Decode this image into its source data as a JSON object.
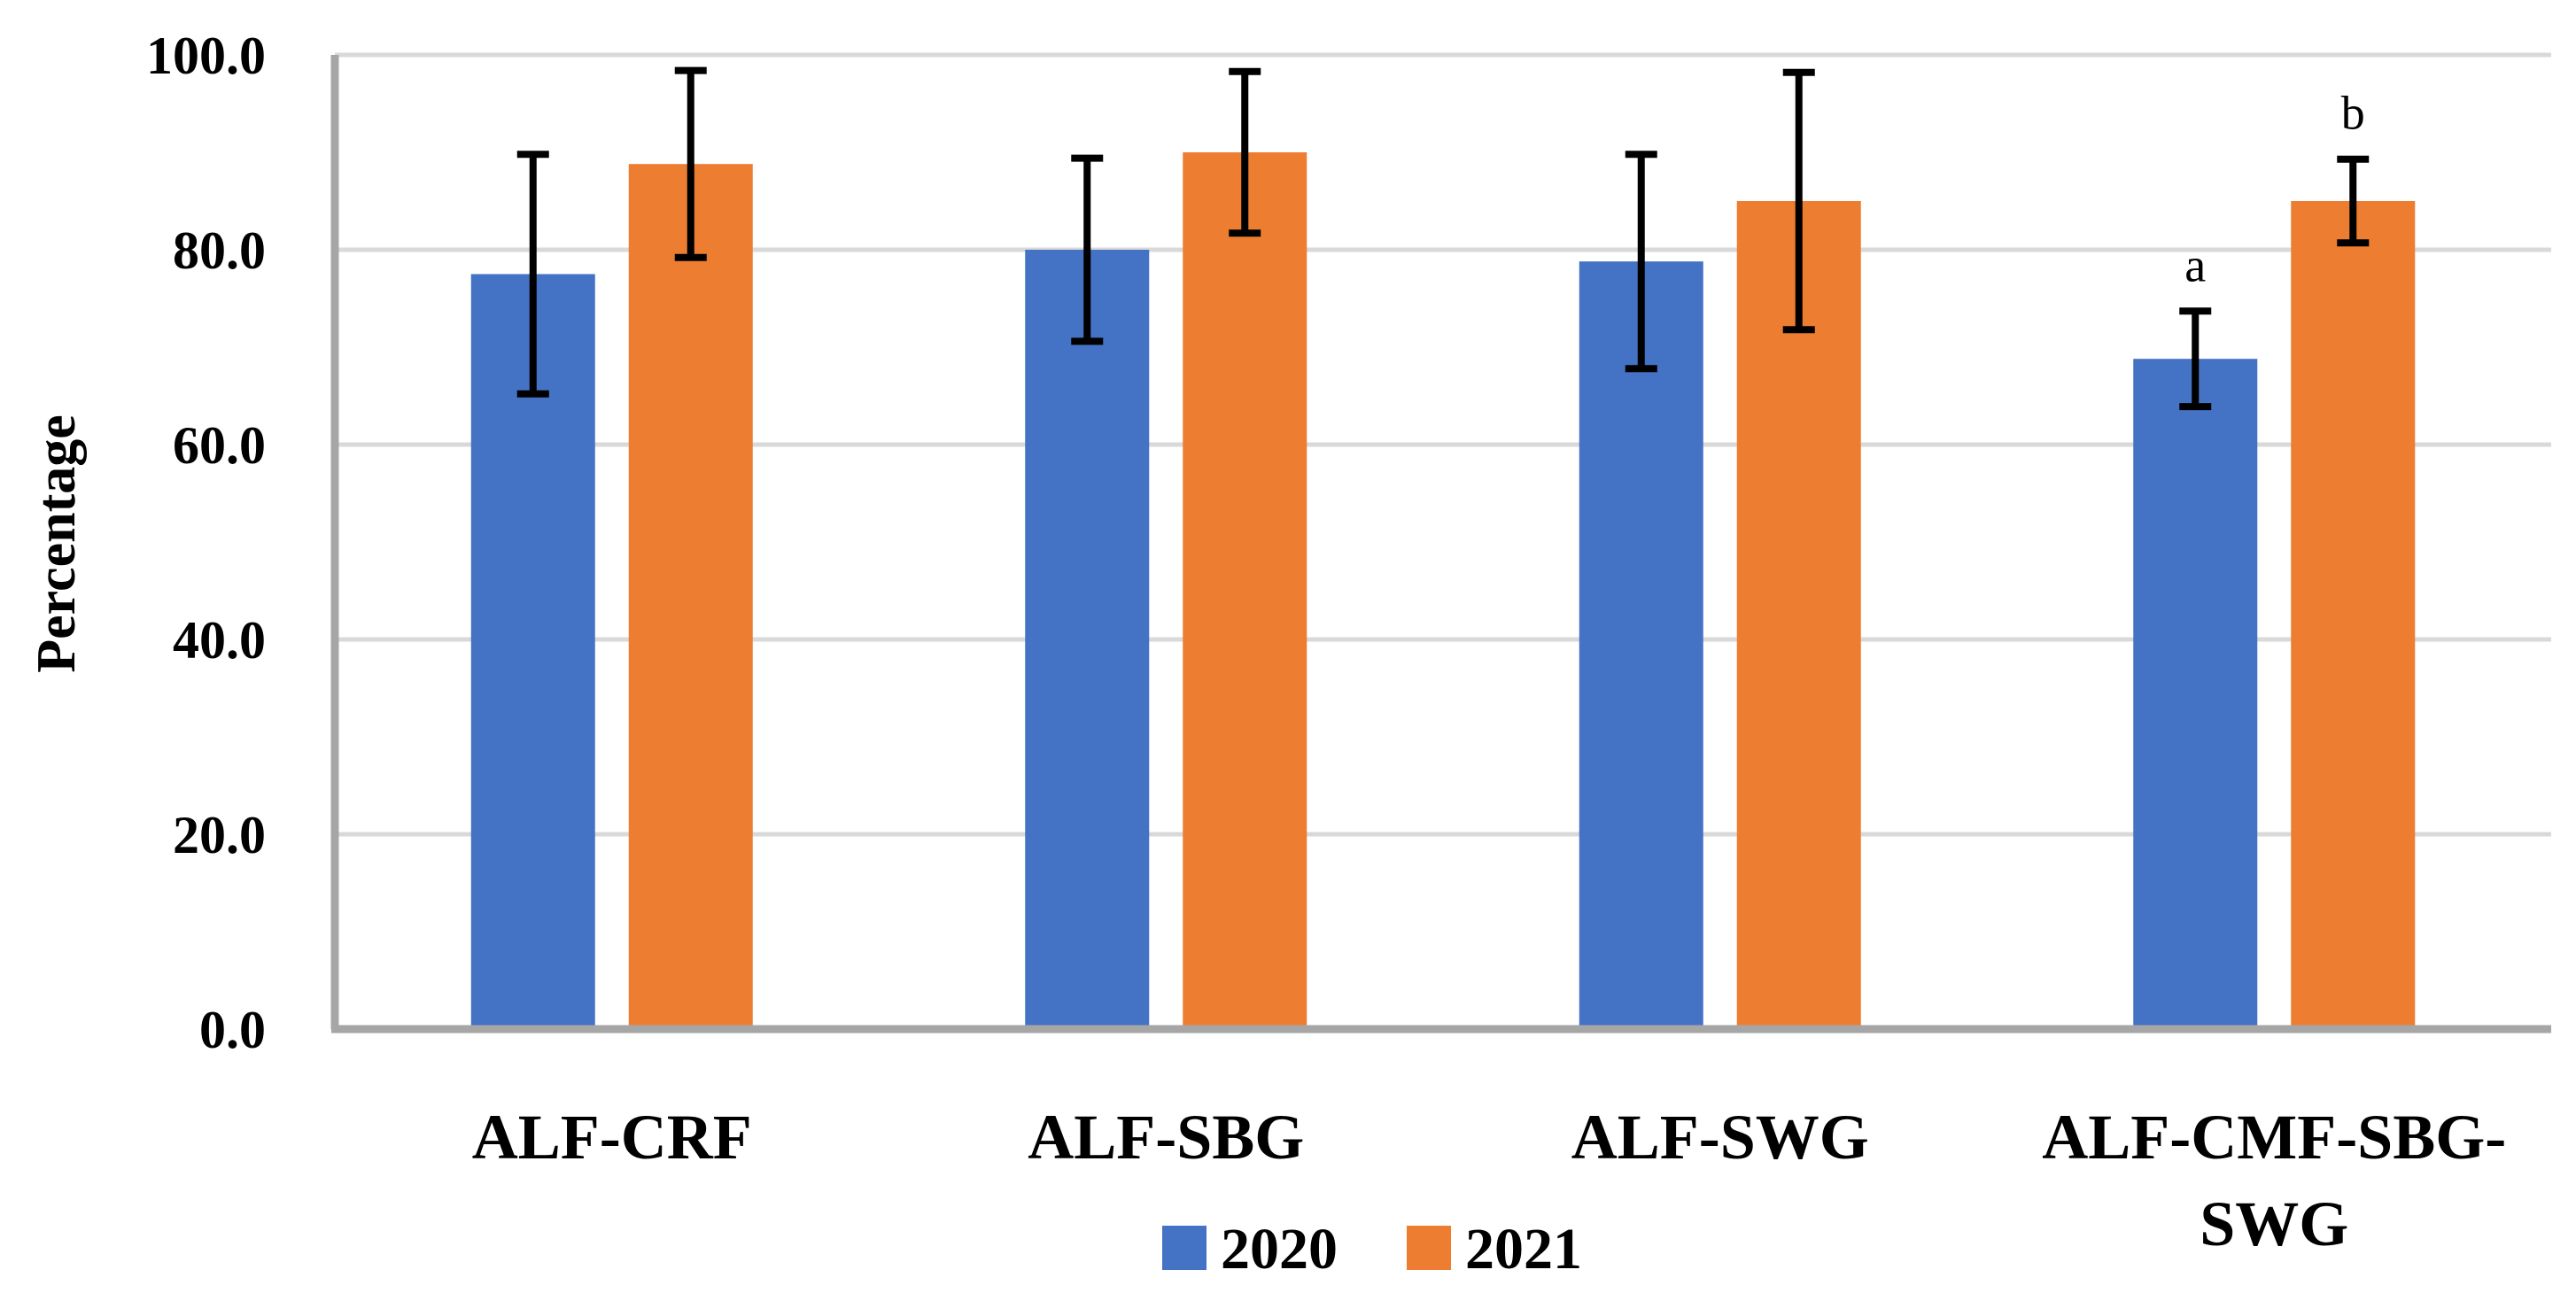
{
  "chart_data": {
    "type": "bar",
    "title": "",
    "xlabel": "",
    "ylabel": "Percentage",
    "ylim": [
      0,
      100
    ],
    "yticks": [
      "0.0",
      "20.0",
      "40.0",
      "60.0",
      "80.0",
      "100.0"
    ],
    "categories": [
      "ALF-CRF",
      "ALF-SBG",
      "ALF-SWG",
      "ALF-CMF-SBG-SWG"
    ],
    "category_lines": [
      [
        "ALF-CRF"
      ],
      [
        "ALF-SBG"
      ],
      [
        "ALF-SWG"
      ],
      [
        "ALF-CMF-SBG-",
        "SWG"
      ]
    ],
    "series": [
      {
        "name": "2020",
        "color": "#4472c4",
        "values": [
          77.5,
          80.0,
          78.8,
          68.8
        ],
        "error": [
          12.3,
          9.4,
          11.0,
          4.9
        ],
        "annotations": [
          "",
          "",
          "",
          "a"
        ]
      },
      {
        "name": "2021",
        "color": "#ed7d31",
        "values": [
          88.8,
          90.0,
          85.0,
          85.0
        ],
        "error": [
          9.6,
          8.3,
          13.2,
          4.3
        ],
        "annotations": [
          "",
          "",
          "",
          "b"
        ]
      }
    ],
    "legend": "bottom",
    "grid": true
  }
}
